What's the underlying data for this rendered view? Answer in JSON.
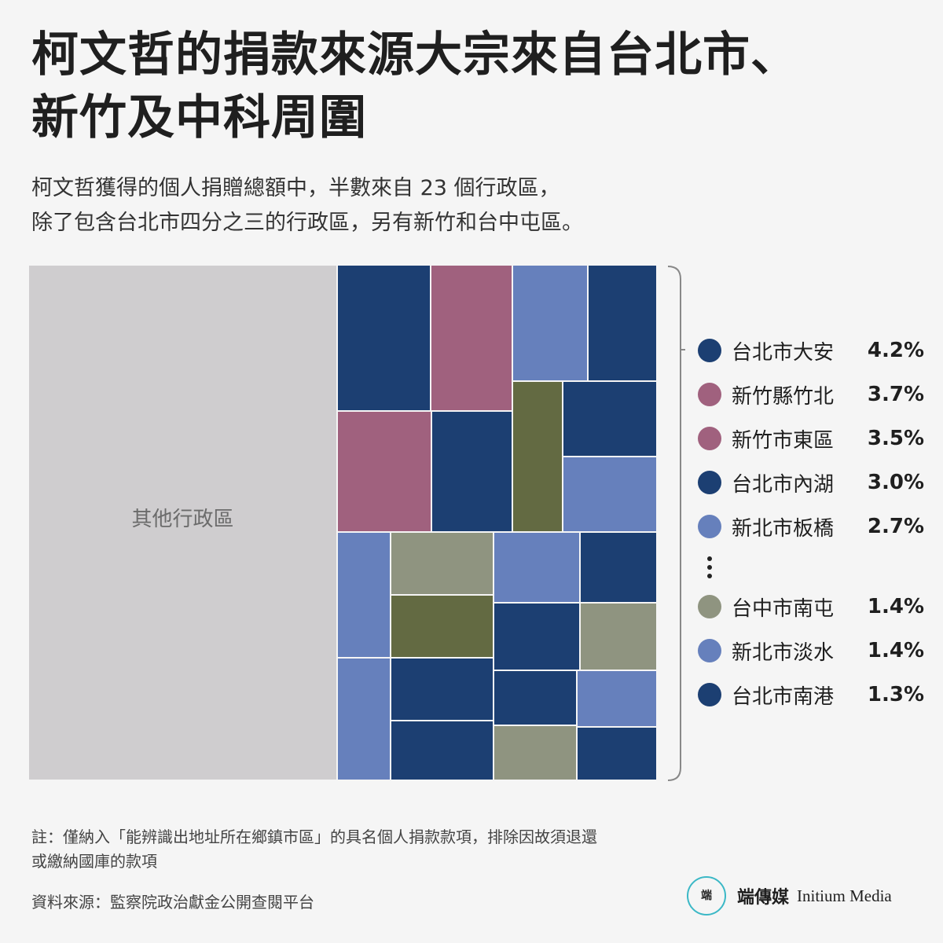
{
  "title_lines": [
    "柯文哲的捐款來源大宗來自台北市、",
    "新竹及中科周圍"
  ],
  "subtitle_lines": [
    "柯文哲獲得的個人捐贈總額中，半數來自 23 個行政區，",
    "除了包含台北市四分之三的行政區，另有新竹和台中屯區。"
  ],
  "chart_data": {
    "type": "treemap",
    "other_label": "其他行政區",
    "legend": [
      {
        "label": "台北市大安",
        "value": "4.2%",
        "color": "#1c3f72"
      },
      {
        "label": "新竹縣竹北",
        "value": "3.7%",
        "color": "#a0617e"
      },
      {
        "label": "新竹市東區",
        "value": "3.5%",
        "color": "#a0617e"
      },
      {
        "label": "台北市內湖",
        "value": "3.0%",
        "color": "#1c3f72"
      },
      {
        "label": "新北市板橋",
        "value": "2.7%",
        "color": "#6680bc"
      },
      {
        "label": "台中市南屯",
        "value": "1.4%",
        "color": "#8f9480"
      },
      {
        "label": "新北市淡水",
        "value": "1.4%",
        "color": "#6680bc"
      },
      {
        "label": "台北市南港",
        "value": "1.3%",
        "color": "#1c3f72"
      }
    ],
    "colors": {
      "other": "#cfcdcf",
      "taipei": "#1c3f72",
      "hsinchu": "#a0617e",
      "new_taipei": "#6680bc",
      "taichung_light": "#8f9480",
      "taichung_dark": "#636a42"
    }
  },
  "note_lines": [
    "註：僅納入「能辨識出地址所在鄉鎮市區」的具名個人捐款款項，排除因故須退還",
    "或繳納國庫的款項"
  ],
  "source": "資料來源：監察院政治獻金公開查閱平台",
  "brand": {
    "logo_text": "端",
    "name_zh": "端傳媒",
    "name_en": "Initium Media"
  }
}
